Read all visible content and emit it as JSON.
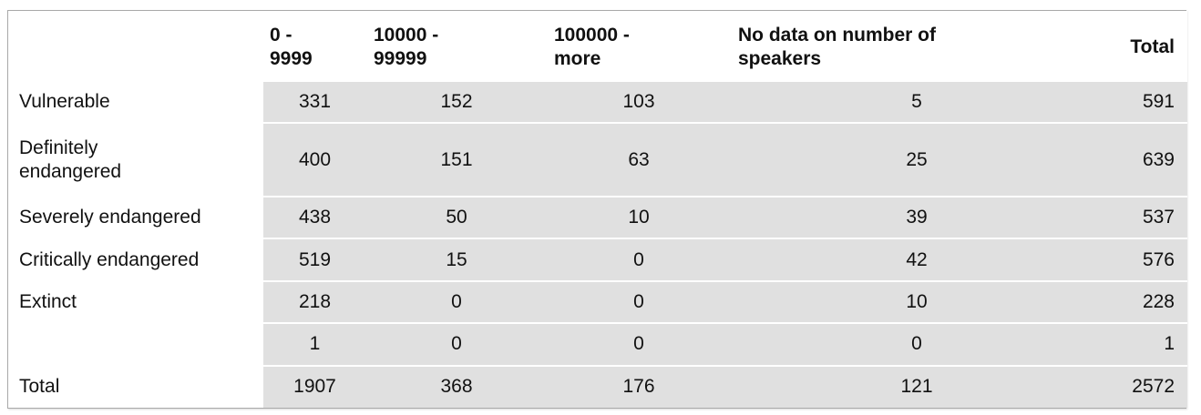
{
  "table": {
    "headers": {
      "col_1": "0 -\n9999",
      "col_2": "10000 -\n99999",
      "col_3": "100000 -\nmore",
      "col_4": "No data on number of\nspeakers",
      "col_5": "Total"
    },
    "rows": [
      {
        "label": "Vulnerable",
        "values": [
          "331",
          "152",
          "103",
          "5",
          "591"
        ]
      },
      {
        "label": "Definitely\nendangered",
        "values": [
          "400",
          "151",
          "63",
          "25",
          "639"
        ]
      },
      {
        "label": "Severely endangered",
        "values": [
          "438",
          "50",
          "10",
          "39",
          "537"
        ]
      },
      {
        "label": "Critically endangered",
        "values": [
          "519",
          "15",
          "0",
          "42",
          "576"
        ]
      },
      {
        "label": "Extinct",
        "values": [
          "218",
          "0",
          "0",
          "10",
          "228"
        ]
      },
      {
        "label": "",
        "values": [
          "1",
          "0",
          "0",
          "0",
          "1"
        ]
      },
      {
        "label": "Total",
        "values": [
          "1907",
          "368",
          "176",
          "121",
          "2572"
        ]
      }
    ]
  },
  "colors": {
    "cell_background": "#e0e0e0",
    "border": "#a9a9a9"
  }
}
